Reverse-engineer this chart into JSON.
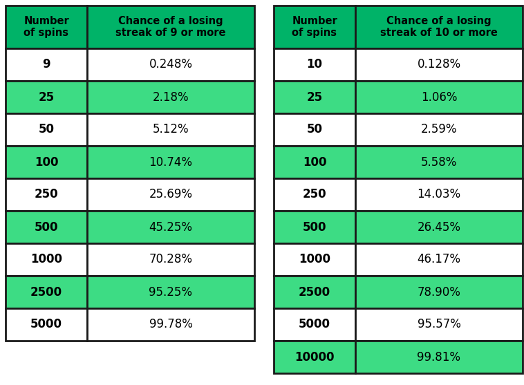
{
  "table1": {
    "header": [
      "Number\nof spins",
      "Chance of a losing\nstreak of 9 or more"
    ],
    "rows": [
      [
        "9",
        "0.248%"
      ],
      [
        "25",
        "2.18%"
      ],
      [
        "50",
        "5.12%"
      ],
      [
        "100",
        "10.74%"
      ],
      [
        "250",
        "25.69%"
      ],
      [
        "500",
        "45.25%"
      ],
      [
        "1000",
        "70.28%"
      ],
      [
        "2500",
        "95.25%"
      ],
      [
        "5000",
        "99.78%"
      ]
    ],
    "row_colors": [
      [
        "#ffffff",
        "#ffffff"
      ],
      [
        "#3ddc84",
        "#3ddc84"
      ],
      [
        "#ffffff",
        "#ffffff"
      ],
      [
        "#3ddc84",
        "#3ddc84"
      ],
      [
        "#ffffff",
        "#ffffff"
      ],
      [
        "#3ddc84",
        "#3ddc84"
      ],
      [
        "#ffffff",
        "#ffffff"
      ],
      [
        "#3ddc84",
        "#3ddc84"
      ],
      [
        "#ffffff",
        "#ffffff"
      ]
    ]
  },
  "table2": {
    "header": [
      "Number\nof spins",
      "Chance of a losing\nstreak of 10 or more"
    ],
    "rows": [
      [
        "10",
        "0.128%"
      ],
      [
        "25",
        "1.06%"
      ],
      [
        "50",
        "2.59%"
      ],
      [
        "100",
        "5.58%"
      ],
      [
        "250",
        "14.03%"
      ],
      [
        "500",
        "26.45%"
      ],
      [
        "1000",
        "46.17%"
      ],
      [
        "2500",
        "78.90%"
      ],
      [
        "5000",
        "95.57%"
      ],
      [
        "10000",
        "99.81%"
      ]
    ],
    "row_colors": [
      [
        "#ffffff",
        "#ffffff"
      ],
      [
        "#3ddc84",
        "#3ddc84"
      ],
      [
        "#ffffff",
        "#ffffff"
      ],
      [
        "#3ddc84",
        "#3ddc84"
      ],
      [
        "#ffffff",
        "#ffffff"
      ],
      [
        "#3ddc84",
        "#3ddc84"
      ],
      [
        "#ffffff",
        "#ffffff"
      ],
      [
        "#3ddc84",
        "#3ddc84"
      ],
      [
        "#ffffff",
        "#ffffff"
      ],
      [
        "#3ddc84",
        "#3ddc84"
      ]
    ]
  },
  "header_color": "#00b368",
  "header_text_color": "#000000",
  "border_color": "#1a1a1a",
  "text_color": "#000000",
  "fig_bg_color": "#ffffff",
  "figw": 7.58,
  "figh": 5.57,
  "dpi": 100
}
